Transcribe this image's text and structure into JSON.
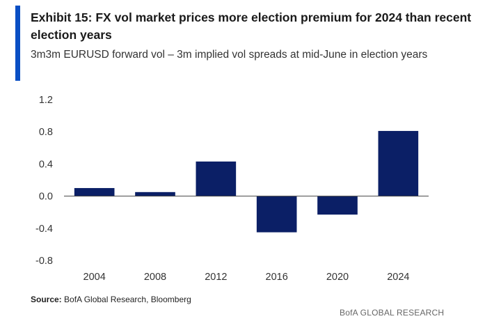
{
  "header": {
    "title": "Exhibit 15: FX vol market prices more election premium for 2024 than recent election years",
    "subtitle": "3m3m EURUSD forward vol – 3m implied vol spreads at mid-June in election years"
  },
  "footer": {
    "source_label": "Source:",
    "source_text": " BofA Global Research, Bloomberg",
    "brand": "BofA GLOBAL RESEARCH"
  },
  "colors": {
    "accent": "#0a4fc4",
    "bar": "#0b1f66",
    "axis": "#444444"
  },
  "chart_data": {
    "type": "bar",
    "title": "Exhibit 15: FX vol market prices more election premium for 2024 than recent election years",
    "subtitle": "3m3m EURUSD forward vol – 3m implied vol spreads at mid-June in election years",
    "xlabel": "",
    "ylabel": "",
    "categories": [
      "2004",
      "2008",
      "2012",
      "2016",
      "2020",
      "2024"
    ],
    "values": [
      0.1,
      0.05,
      0.43,
      -0.45,
      -0.23,
      0.81
    ],
    "ylim": [
      -0.8,
      1.2
    ],
    "yticks": [
      1.2,
      0.8,
      0.4,
      0.0,
      -0.4,
      -0.8
    ],
    "ytick_labels": [
      "1.2",
      "0.8",
      "0.4",
      "0.0",
      "-0.4",
      "-0.8"
    ],
    "grid": false,
    "legend": "none"
  }
}
